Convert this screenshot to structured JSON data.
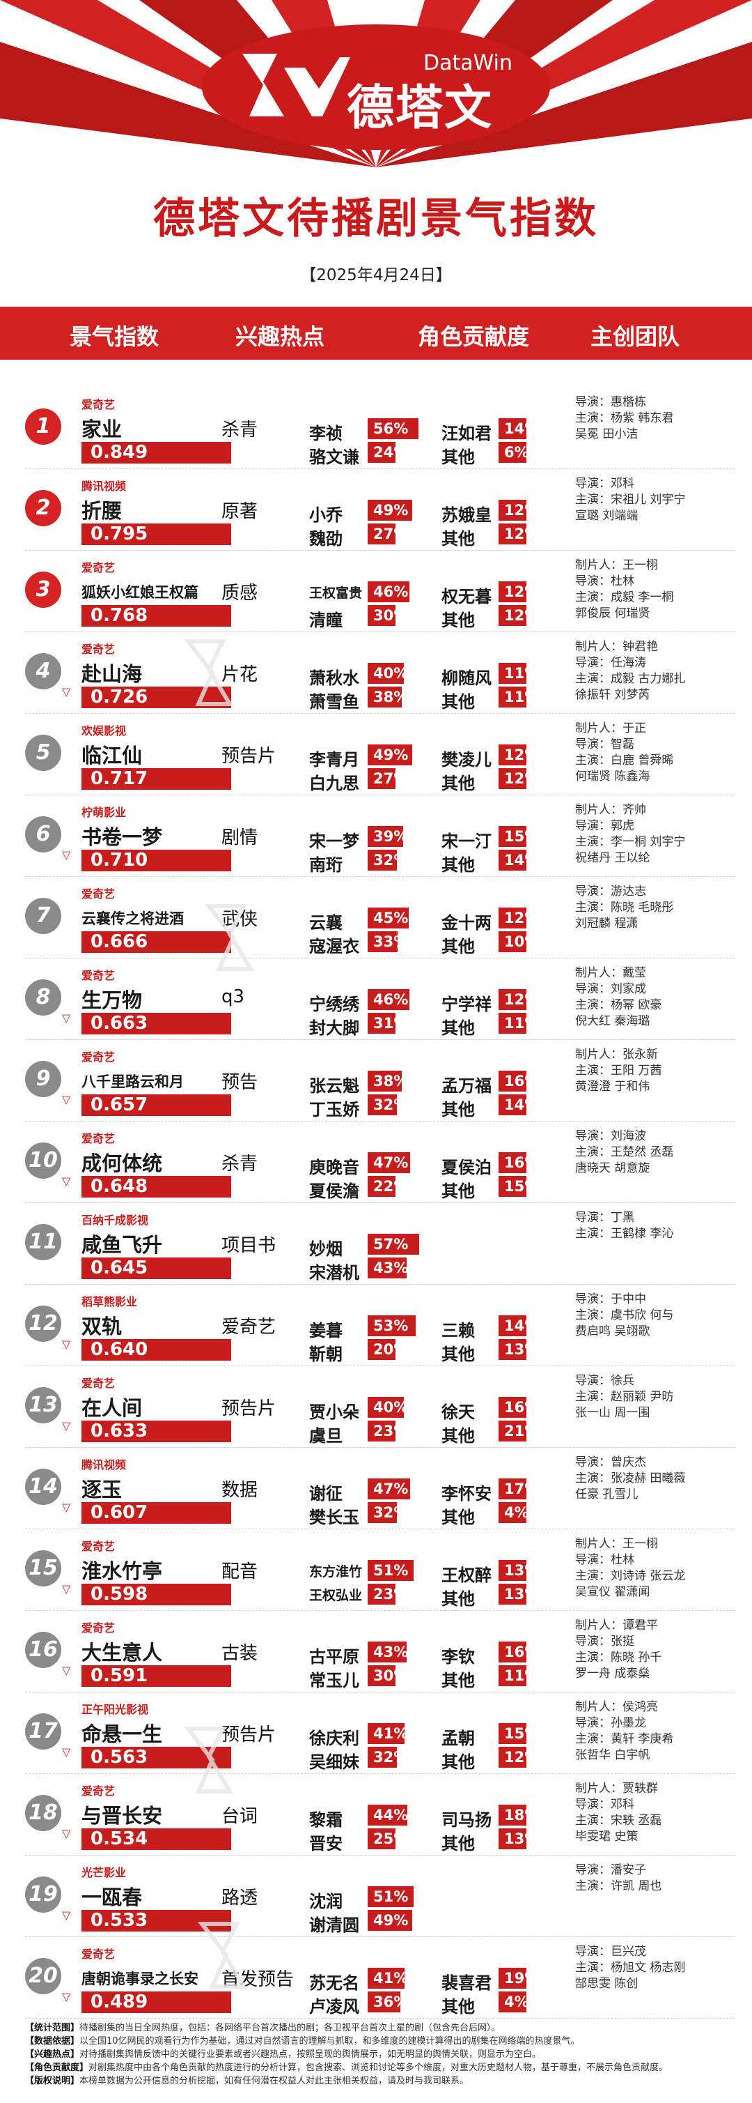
{
  "brand": {
    "name": "德塔文",
    "en": "DataWin"
  },
  "page_title": "德塔文待播剧景气指数",
  "date": "【2025年4月24日】",
  "columns": [
    "景气指数",
    "兴趣热点",
    "角色贡献度",
    "主创团队"
  ],
  "colors": {
    "red": "#c81d1d",
    "grey": "#8a8a8a"
  },
  "rows": [
    {
      "rank": "1",
      "trend": "",
      "platform": "爱奇艺",
      "title": "家业",
      "score": "0.849",
      "hot": "杀青",
      "c1": "李祯",
      "p1": "56%",
      "c2": "骆文谦",
      "p2": "24%",
      "c3": "汪如君",
      "p3": "14%",
      "c4": "其他",
      "p4": "6%",
      "crew": [
        "导演：惠楷栋",
        "主演：杨紫  韩东君",
        "吴冕  田小洁"
      ]
    },
    {
      "rank": "2",
      "trend": "",
      "platform": "腾讯视频",
      "title": "折腰",
      "score": "0.795",
      "hot": "原著",
      "c1": "小乔",
      "p1": "49%",
      "c2": "魏劭",
      "p2": "27%",
      "c3": "苏娥皇",
      "p3": "12%",
      "c4": "其他",
      "p4": "12%",
      "crew": [
        "导演：邓科",
        "主演：宋祖儿  刘宇宁",
        "宣璐  刘端端"
      ]
    },
    {
      "rank": "3",
      "trend": "",
      "platform": "爱奇艺",
      "title": "狐妖小红娘王权篇",
      "score": "0.768",
      "hot": "质感",
      "c1": "王权富贵",
      "p1": "46%",
      "c2": "清瞳",
      "p2": "30%",
      "c3": "权无暮",
      "p3": "12%",
      "c4": "其他",
      "p4": "12%",
      "crew": [
        "制片人：王一栩",
        "导演：杜林",
        "主演：成毅  李一桐",
        "郭俊辰  何瑞贤"
      ]
    },
    {
      "rank": "4",
      "trend": "▽",
      "platform": "爱奇艺",
      "title": "赴山海",
      "score": "0.726",
      "hot": "片花",
      "c1": "萧秋水",
      "p1": "40%",
      "c2": "萧雪鱼",
      "p2": "38%",
      "c3": "柳随风",
      "p3": "11%",
      "c4": "其他",
      "p4": "11%",
      "crew": [
        "制片人：钟君艳",
        "导演：任海涛",
        "主演：成毅  古力娜扎",
        "徐振轩  刘梦芮"
      ]
    },
    {
      "rank": "5",
      "trend": "",
      "platform": "欢娱影视",
      "title": "临江仙",
      "score": "0.717",
      "hot": "预告片",
      "c1": "李青月",
      "p1": "49%",
      "c2": "白九思",
      "p2": "27%",
      "c3": "樊凌儿",
      "p3": "12%",
      "c4": "其他",
      "p4": "12%",
      "crew": [
        "制片人：于正",
        "导演：智磊",
        "主演：白鹿  曾舜晞",
        "何瑞贤  陈鑫海"
      ]
    },
    {
      "rank": "6",
      "trend": "▽",
      "platform": "柠萌影业",
      "title": "书卷一梦",
      "score": "0.710",
      "hot": "剧情",
      "c1": "宋一梦",
      "p1": "39%",
      "c2": "南珩",
      "p2": "32%",
      "c3": "宋一汀",
      "p3": "15%",
      "c4": "其他",
      "p4": "14%",
      "crew": [
        "制片人：齐帅",
        "导演：郭虎",
        "主演：李一桐  刘宇宁",
        "祝绪丹  王以纶"
      ]
    },
    {
      "rank": "7",
      "trend": "",
      "platform": "爱奇艺",
      "title": "云襄传之将进酒",
      "score": "0.666",
      "hot": "武侠",
      "c1": "云襄",
      "p1": "45%",
      "c2": "寇渥衣",
      "p2": "33%",
      "c3": "金十两",
      "p3": "12%",
      "c4": "其他",
      "p4": "10%",
      "crew": [
        "导演：游达志",
        "主演：陈晓  毛晓彤",
        "刘冠麟  程潇"
      ]
    },
    {
      "rank": "8",
      "trend": "▽",
      "platform": "爱奇艺",
      "title": "生万物",
      "score": "0.663",
      "hot": "q3",
      "c1": "宁绣绣",
      "p1": "46%",
      "c2": "封大脚",
      "p2": "31%",
      "c3": "宁学祥",
      "p3": "12%",
      "c4": "其他",
      "p4": "11%",
      "crew": [
        "制片人：戴莹",
        "导演：刘家成",
        "主演：杨幂  欧豪",
        "倪大红  秦海璐"
      ]
    },
    {
      "rank": "9",
      "trend": "▽",
      "platform": "爱奇艺",
      "title": "八千里路云和月",
      "score": "0.657",
      "hot": "预告",
      "c1": "张云魁",
      "p1": "38%",
      "c2": "丁玉娇",
      "p2": "32%",
      "c3": "孟万福",
      "p3": "16%",
      "c4": "其他",
      "p4": "14%",
      "crew": [
        "制片人：张永新",
        "主演：王阳  万茜",
        "黄澄澄  于和伟"
      ]
    },
    {
      "rank": "10",
      "trend": "▽",
      "platform": "爱奇艺",
      "title": "成何体统",
      "score": "0.648",
      "hot": "杀青",
      "c1": "庾晚音",
      "p1": "47%",
      "c2": "夏侯澹",
      "p2": "22%",
      "c3": "夏侯泊",
      "p3": "16%",
      "c4": "其他",
      "p4": "15%",
      "crew": [
        "导演：刘海波",
        "主演：王楚然  丞磊",
        "唐晓天  胡意旋"
      ]
    },
    {
      "rank": "11",
      "trend": "",
      "platform": "百纳千成影视",
      "title": "咸鱼飞升",
      "score": "0.645",
      "hot": "项目书",
      "c1": "妙烟",
      "p1": "57%",
      "c2": "宋潜机",
      "p2": "43%",
      "c3": "",
      "p3": "",
      "c4": "",
      "p4": "",
      "crew": [
        "导演：丁黑",
        "主演：王鹤棣  李沁"
      ]
    },
    {
      "rank": "12",
      "trend": "▽",
      "platform": "稻草熊影业",
      "title": "双轨",
      "score": "0.640",
      "hot": "爱奇艺",
      "c1": "姜暮",
      "p1": "53%",
      "c2": "靳朝",
      "p2": "20%",
      "c3": "三赖",
      "p3": "14%",
      "c4": "其他",
      "p4": "13%",
      "crew": [
        "导演：于中中",
        "主演：虞书欣  何与",
        "费启鸣  吴翊歌"
      ]
    },
    {
      "rank": "13",
      "trend": "▽",
      "platform": "爱奇艺",
      "title": "在人间",
      "score": "0.633",
      "hot": "预告片",
      "c1": "贾小朵",
      "p1": "40%",
      "c2": "虞旦",
      "p2": "23%",
      "c3": "徐天",
      "p3": "16%",
      "c4": "其他",
      "p4": "21%",
      "crew": [
        "导演：徐兵",
        "主演：赵丽颖  尹昉",
        "张一山  周一围"
      ]
    },
    {
      "rank": "14",
      "trend": "▽",
      "platform": "腾讯视频",
      "title": "逐玉",
      "score": "0.607",
      "hot": "数据",
      "c1": "谢征",
      "p1": "47%",
      "c2": "樊长玉",
      "p2": "32%",
      "c3": "李怀安",
      "p3": "17%",
      "c4": "其他",
      "p4": "4%",
      "crew": [
        "导演：曾庆杰",
        "主演：张凌赫  田曦薇",
        "任豪  孔雪儿"
      ]
    },
    {
      "rank": "15",
      "trend": "▽",
      "platform": "爱奇艺",
      "title": "淮水竹亭",
      "score": "0.598",
      "hot": "配音",
      "c1": "东方淮竹",
      "p1": "51%",
      "c2": "王权弘业",
      "p2": "23%",
      "c3": "王权醉",
      "p3": "13%",
      "c4": "其他",
      "p4": "13%",
      "crew": [
        "制片人：王一栩",
        "导演：杜林",
        "主演：刘诗诗  张云龙",
        "吴宣仪  翟潇闻"
      ]
    },
    {
      "rank": "16",
      "trend": "▽",
      "platform": "爱奇艺",
      "title": "大生意人",
      "score": "0.591",
      "hot": "古装",
      "c1": "古平原",
      "p1": "43%",
      "c2": "常玉儿",
      "p2": "30%",
      "c3": "李钦",
      "p3": "16%",
      "c4": "其他",
      "p4": "11%",
      "crew": [
        "制片人：谭君平",
        "导演：张挺",
        "主演：陈晓  孙千",
        "罗一舟  成泰燊"
      ]
    },
    {
      "rank": "17",
      "trend": "▽",
      "platform": "正午阳光影视",
      "title": "命悬一生",
      "score": "0.563",
      "hot": "预告片",
      "c1": "徐庆利",
      "p1": "41%",
      "c2": "吴细妹",
      "p2": "32%",
      "c3": "孟朝",
      "p3": "15%",
      "c4": "其他",
      "p4": "12%",
      "crew": [
        "制片人：侯鸿亮",
        "导演：孙墨龙",
        "主演：黄轩  李庚希",
        "张哲华  白宇帆"
      ]
    },
    {
      "rank": "18",
      "trend": "▽",
      "platform": "爱奇艺",
      "title": "与晋长安",
      "score": "0.534",
      "hot": "台词",
      "c1": "黎霜",
      "p1": "44%",
      "c2": "晋安",
      "p2": "25%",
      "c3": "司马扬",
      "p3": "18%",
      "c4": "其他",
      "p4": "13%",
      "crew": [
        "制片人：贾轶群",
        "导演：邓科",
        "主演：宋轶  丞磊",
        "毕雯珺  史策"
      ]
    },
    {
      "rank": "19",
      "trend": "▽",
      "platform": "光芒影业",
      "title": "一瓯春",
      "score": "0.533",
      "hot": "路透",
      "c1": "沈润",
      "p1": "51%",
      "c2": "谢清圆",
      "p2": "49%",
      "c3": "",
      "p3": "",
      "c4": "",
      "p4": "",
      "crew": [
        "导演：潘安子",
        "主演：许凯  周也"
      ]
    },
    {
      "rank": "20",
      "trend": "▽",
      "platform": "爱奇艺",
      "title": "唐朝诡事录之长安",
      "score": "0.489",
      "hot": "首发预告",
      "c1": "苏无名",
      "p1": "41%",
      "c2": "卢凌风",
      "p2": "36%",
      "c3": "裴喜君",
      "p3": "19%",
      "c4": "其他",
      "p4": "4%",
      "crew": [
        "导演：巨兴茂",
        "主演：杨旭文  杨志刚",
        "郜思雯  陈创"
      ]
    }
  ],
  "footer": [
    {
      "k": "【统计范围】",
      "v": "待播剧集的当日全网热度，包括：各网络平台首次播出的剧；各卫视平台首次上星的剧（包含先台后网）。"
    },
    {
      "k": "【数据依据】",
      "v": "以全国10亿网民的观看行为作为基础，通过对自然语言的理解与抓取，和多维度的建模计算得出的剧集在网络端的热度景气。"
    },
    {
      "k": "【兴趣热点】",
      "v": "对待播剧集舆情反馈中的关键行业要素或者兴趣热点，按照呈现的舆情展示，如无明显的舆情关联，则显示为空白。"
    },
    {
      "k": "【角色贡献度】",
      "v": "对剧集热度中由各个角色贡献的热度进行的分析计算，包含搜索、浏览和讨论等多个维度，对重大历史题材人物，基于尊重，不展示角色贡献度。"
    },
    {
      "k": "【版权说明】",
      "v": "本榜单数据为公开信息的分析挖掘，如有任何潜在权益人对此主张相关权益，请及时与我司联系。"
    }
  ]
}
